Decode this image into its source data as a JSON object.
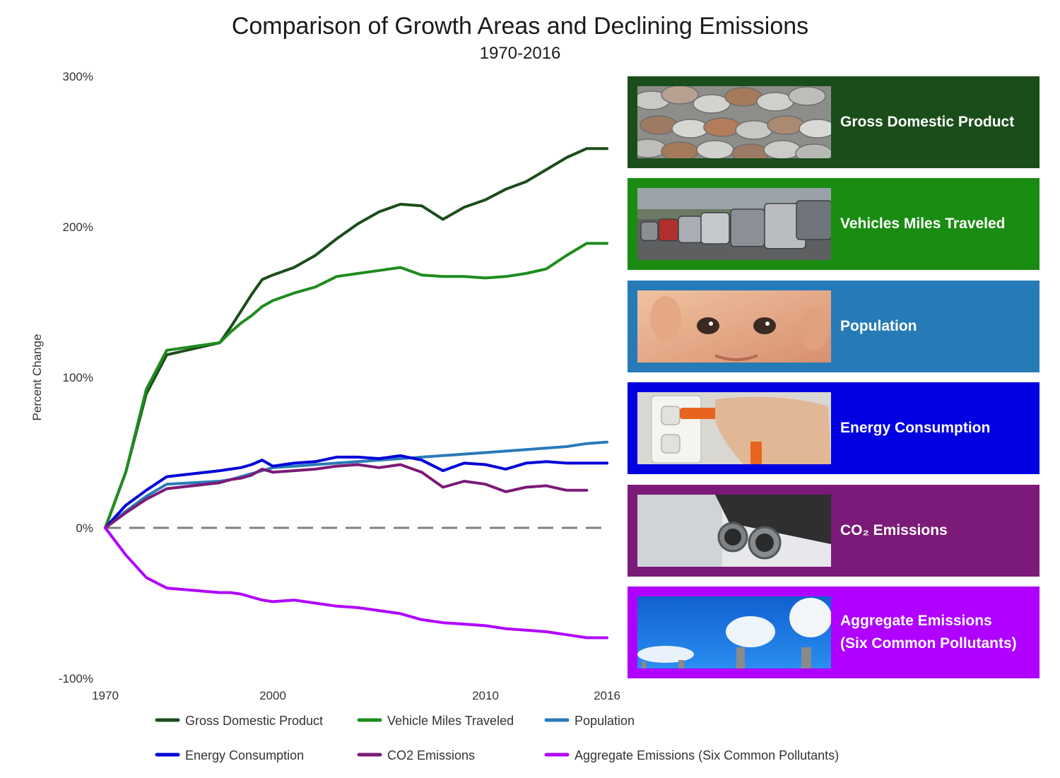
{
  "title": "Comparison of Growth Areas and Declining Emissions",
  "subtitle": "1970-2016",
  "chart_data": {
    "type": "line",
    "title": "Comparison of Growth Areas and Declining Emissions",
    "subtitle": "1970-2016",
    "ylabel": "Percent Change",
    "xlabel": "",
    "y_ticks": [
      "300%",
      "200%",
      "100%",
      "0%",
      "-100%"
    ],
    "x_ticks": [
      "1970",
      "2000",
      "2010",
      "2016"
    ],
    "ylim": [
      -100,
      300
    ],
    "xlim": [
      1970,
      2016
    ],
    "x_scale": "irregular",
    "grid": false,
    "legend_position": "bottom",
    "baseline": {
      "y": 0,
      "style": "dashed",
      "color": "#808080"
    },
    "series": [
      {
        "name": "Gross Domestic Product",
        "color": "#1b4d1b",
        "x": [
          1970,
          1980,
          1985,
          1990,
          1995,
          1996,
          1997,
          1998,
          1999,
          2000,
          2001,
          2002,
          2003,
          2004,
          2005,
          2006,
          2007,
          2008,
          2009,
          2010,
          2011,
          2012,
          2013,
          2014,
          2015,
          2016
        ],
        "values": [
          0,
          37,
          89,
          115,
          123,
          133,
          144,
          155,
          165,
          168,
          173,
          181,
          192,
          202,
          210,
          215,
          214,
          205,
          213,
          218,
          225,
          230,
          238,
          246,
          252,
          252
        ]
      },
      {
        "name": "Vehicle Miles Traveled",
        "color": "#1e8c1e",
        "x": [
          1970,
          1980,
          1985,
          1990,
          1995,
          1996,
          1997,
          1998,
          1999,
          2000,
          2001,
          2002,
          2003,
          2004,
          2005,
          2006,
          2007,
          2008,
          2009,
          2010,
          2011,
          2012,
          2013,
          2014,
          2015,
          2016
        ],
        "values": [
          0,
          37,
          92,
          118,
          123,
          130,
          136,
          141,
          147,
          151,
          156,
          160,
          167,
          169,
          171,
          173,
          168,
          167,
          167,
          166,
          167,
          169,
          172,
          181,
          189,
          189
        ]
      },
      {
        "name": "Population",
        "color": "#2a7ab8",
        "x": [
          1970,
          1980,
          1985,
          1990,
          1995,
          1996,
          1997,
          1998,
          1999,
          2000,
          2001,
          2002,
          2003,
          2004,
          2005,
          2006,
          2007,
          2008,
          2009,
          2010,
          2011,
          2012,
          2013,
          2014,
          2015,
          2016
        ],
        "values": [
          0,
          11,
          21,
          29,
          31,
          32,
          34,
          36,
          38,
          40,
          41,
          42,
          43,
          44,
          45,
          46,
          47,
          48,
          49,
          50,
          51,
          52,
          53,
          54,
          56,
          57
        ]
      },
      {
        "name": "Energy Consumption",
        "color": "#0000d8",
        "x": [
          1970,
          1980,
          1985,
          1990,
          1995,
          1996,
          1997,
          1998,
          1999,
          2000,
          2001,
          2002,
          2003,
          2004,
          2005,
          2006,
          2007,
          2008,
          2009,
          2010,
          2011,
          2012,
          2013,
          2014,
          2015,
          2016
        ],
        "values": [
          0,
          15,
          25,
          34,
          38,
          39,
          40,
          42,
          45,
          41,
          43,
          44,
          47,
          47,
          46,
          48,
          45,
          38,
          43,
          42,
          39,
          43,
          44,
          43,
          43,
          43
        ]
      },
      {
        "name": "CO2 Emissions",
        "color": "#7b1a78",
        "x": [
          1970,
          1980,
          1985,
          1990,
          1995,
          1996,
          1997,
          1998,
          1999,
          2000,
          2001,
          2002,
          2003,
          2004,
          2005,
          2006,
          2007,
          2008,
          2009,
          2010,
          2011,
          2012,
          2013,
          2014,
          2015
        ],
        "values": [
          0,
          10,
          19,
          26,
          30,
          32,
          33,
          35,
          39,
          37,
          38,
          39,
          41,
          42,
          40,
          42,
          37,
          27,
          31,
          29,
          24,
          27,
          28,
          25,
          25
        ]
      },
      {
        "name": "Aggregate Emissions (Six Common Pollutants)",
        "color": "#b000ff",
        "x": [
          1970,
          1980,
          1985,
          1990,
          1995,
          1996,
          1997,
          1998,
          1999,
          2000,
          2001,
          2002,
          2003,
          2004,
          2005,
          2006,
          2007,
          2008,
          2009,
          2010,
          2011,
          2012,
          2013,
          2014,
          2015,
          2016
        ],
        "values": [
          0,
          -18,
          -33,
          -40,
          -43,
          -43,
          -44,
          -46,
          -48,
          -49,
          -48,
          -50,
          -52,
          -53,
          -55,
          -57,
          -61,
          -63,
          -64,
          -65,
          -67,
          -68,
          -69,
          -71,
          -73,
          -73
        ]
      }
    ]
  },
  "panels": [
    {
      "label": "Gross Domestic Product",
      "color": "#1b4d1b",
      "photo": "coins-photo"
    },
    {
      "label": "Vehicles Miles Traveled",
      "color": "#1a8c12",
      "photo": "traffic-photo"
    },
    {
      "label": "Population",
      "color": "#267bb7",
      "photo": "baby-photo"
    },
    {
      "label": "Energy Consumption",
      "color": "#0000e0",
      "photo": "plug-photo"
    },
    {
      "label": "CO₂ Emissions",
      "color": "#7b1a78",
      "photo": "exhaust-photo"
    },
    {
      "label": "Aggregate Emissions (Six Common Pollutants)",
      "label_lines": [
        "Aggregate Emissions",
        "(Six Common Pollutants)"
      ],
      "color": "#b000ff",
      "photo": "smokestacks-photo"
    }
  ]
}
